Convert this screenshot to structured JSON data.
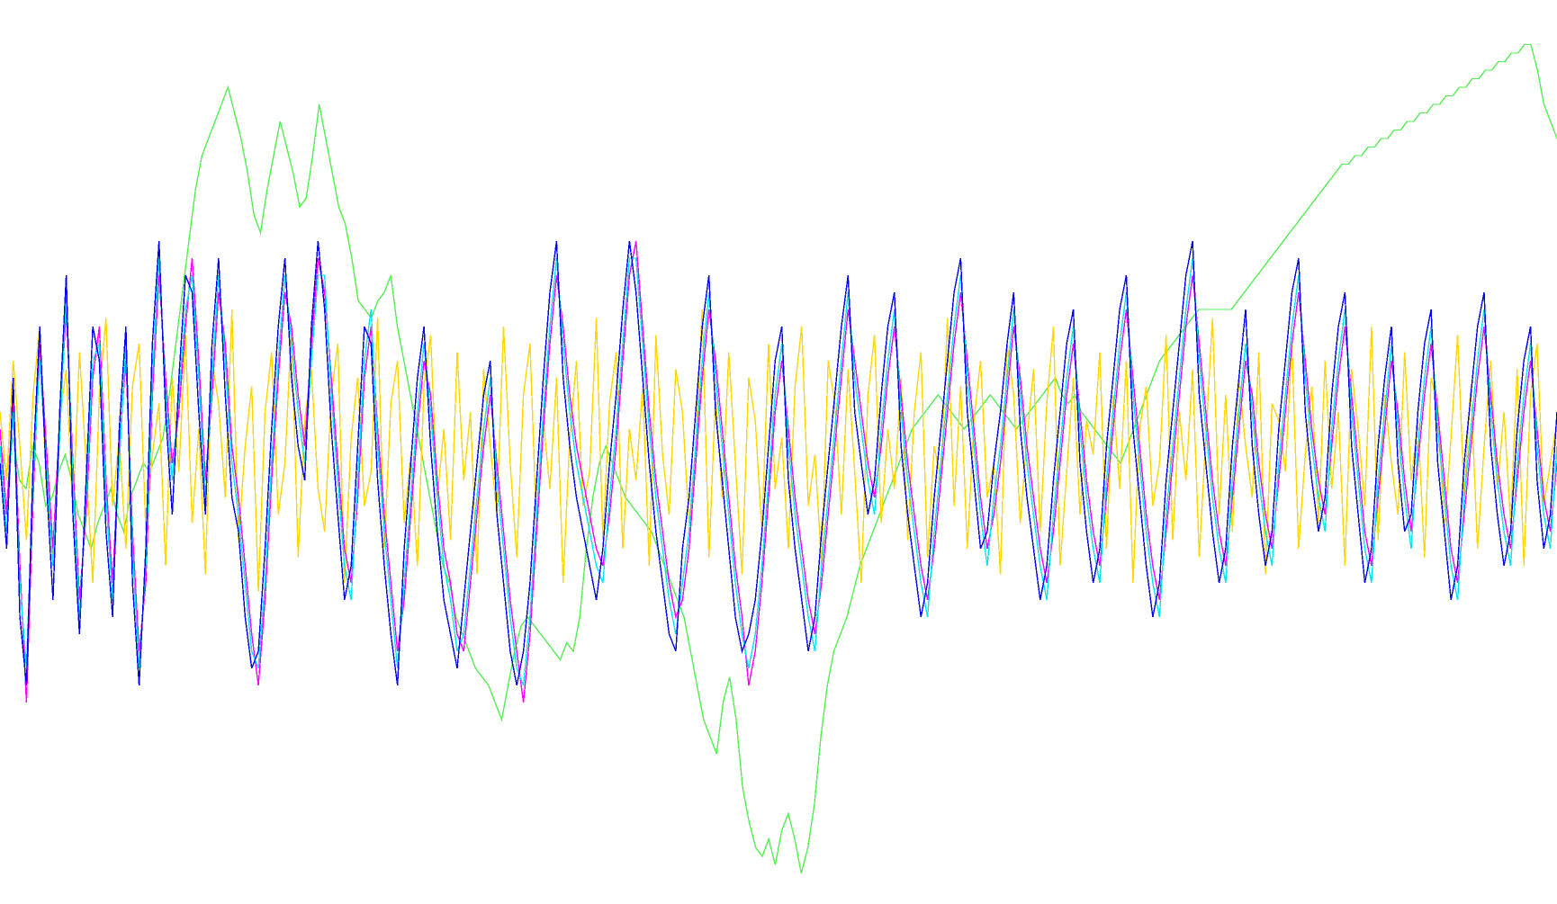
{
  "chart_data": {
    "type": "line",
    "title": "",
    "xlabel": "",
    "ylabel": "",
    "grid": false,
    "legend": "none",
    "x_range": [
      0,
      240
    ],
    "ylim": [
      0,
      100
    ],
    "series": [
      {
        "color": "#55ee55",
        "values": [
          52,
          49,
          53,
          48,
          47,
          52,
          50,
          45,
          46,
          49,
          51,
          48,
          44,
          42,
          40,
          43,
          45,
          47,
          44,
          42,
          46,
          48,
          50,
          49,
          51,
          53,
          58,
          64,
          70,
          76,
          82,
          86,
          88,
          90,
          92,
          94,
          91,
          88,
          84,
          79,
          77,
          82,
          86,
          90,
          87,
          84,
          80,
          81,
          86,
          92,
          88,
          84,
          80,
          78,
          74,
          69,
          68,
          67,
          69,
          70,
          72,
          66,
          62,
          58,
          54,
          50,
          46,
          42,
          38,
          36,
          32,
          30,
          28,
          26,
          25,
          24,
          22,
          20,
          24,
          28,
          31,
          32,
          31,
          30,
          29,
          28,
          27,
          29,
          28,
          32,
          40,
          46,
          50,
          52,
          50,
          48,
          46,
          45,
          44,
          43,
          42,
          40,
          38,
          36,
          34,
          32,
          28,
          24,
          20,
          18,
          16,
          22,
          25,
          20,
          12,
          8,
          5,
          4,
          6,
          3,
          7,
          9,
          6,
          2,
          5,
          10,
          18,
          24,
          28,
          30,
          32,
          35,
          38,
          40,
          42,
          44,
          46,
          48,
          50,
          52,
          54,
          55,
          56,
          57,
          58,
          57,
          56,
          55,
          54,
          55,
          56,
          57,
          58,
          57,
          56,
          55,
          54,
          55,
          56,
          57,
          58,
          59,
          60,
          58,
          57,
          58,
          56,
          55,
          54,
          53,
          52,
          51,
          50,
          52,
          54,
          56,
          58,
          60,
          62,
          63,
          64,
          65,
          66,
          67,
          68,
          68,
          68,
          68,
          68,
          68,
          69,
          70,
          71,
          72,
          73,
          74,
          75,
          76,
          77,
          78,
          79,
          80,
          81,
          82,
          83,
          84,
          85,
          85,
          86,
          86,
          87,
          87,
          88,
          88,
          89,
          89,
          90,
          90,
          91,
          91,
          92,
          92,
          93,
          93,
          94,
          94,
          95,
          95,
          96,
          96,
          97,
          97,
          98,
          98,
          99,
          99,
          96,
          92,
          90,
          88
        ]
      },
      {
        "color": "#ffd700",
        "values": [
          56,
          48,
          62,
          52,
          41,
          58,
          66,
          47,
          39,
          55,
          61,
          44,
          63,
          50,
          36,
          58,
          67,
          45,
          53,
          40,
          59,
          64,
          42,
          51,
          57,
          38,
          60,
          49,
          65,
          43,
          54,
          37,
          62,
          57,
          46,
          68,
          41,
          52,
          59,
          35,
          56,
          63,
          44,
          50,
          66,
          39,
          55,
          61,
          47,
          42,
          58,
          64,
          36,
          53,
          60,
          45,
          49,
          67,
          40,
          57,
          62,
          43,
          51,
          38,
          59,
          65,
          46,
          54,
          41,
          63,
          48,
          56,
          37,
          61,
          52,
          44,
          66,
          50,
          39,
          58,
          64,
          42,
          55,
          47,
          60,
          36,
          53,
          62,
          45,
          49,
          67,
          41,
          57,
          63,
          40,
          54,
          48,
          59,
          38,
          65,
          51,
          44,
          61,
          56,
          43,
          52,
          68,
          39,
          58,
          46,
          63,
          50,
          37,
          60,
          55,
          42,
          64,
          47,
          53,
          40,
          59,
          66,
          45,
          51,
          38,
          62,
          57,
          44,
          61,
          49,
          36,
          58,
          65,
          43,
          54,
          47,
          60,
          41,
          56,
          63,
          39,
          52,
          48,
          67,
          45,
          59,
          40,
          55,
          62,
          46,
          50,
          37,
          64,
          58,
          43,
          53,
          61,
          42,
          57,
          66,
          38,
          49,
          60,
          44,
          55,
          51,
          63,
          40,
          58,
          47,
          62,
          36,
          54,
          59,
          45,
          50,
          65,
          41,
          56,
          48,
          61,
          39,
          53,
          67,
          44,
          58,
          42,
          60,
          52,
          46,
          63,
          37,
          57,
          55,
          49,
          64,
          40,
          51,
          59,
          43,
          62,
          47,
          56,
          38,
          61,
          54,
          45,
          66,
          41,
          58,
          50,
          44,
          63,
          48,
          55,
          39,
          60,
          57,
          42,
          53,
          65,
          46,
          59,
          40,
          52,
          62,
          47,
          56,
          43,
          61,
          38,
          58,
          64,
          45,
          50,
          55
        ]
      },
      {
        "color": "#ff00ff",
        "values": [
          54,
          44,
          58,
          38,
          22,
          46,
          64,
          52,
          40,
          55,
          68,
          50,
          34,
          44,
          60,
          66,
          48,
          36,
          52,
          62,
          42,
          28,
          36,
          58,
          72,
          60,
          50,
          56,
          66,
          74,
          62,
          48,
          58,
          70,
          64,
          52,
          46,
          38,
          30,
          24,
          34,
          48,
          60,
          70,
          66,
          58,
          52,
          64,
          74,
          70,
          60,
          50,
          40,
          36,
          46,
          60,
          66,
          54,
          44,
          36,
          28,
          34,
          44,
          54,
          62,
          58,
          48,
          40,
          36,
          30,
          28,
          36,
          44,
          52,
          58,
          50,
          42,
          34,
          28,
          22,
          30,
          42,
          54,
          64,
          72,
          66,
          58,
          52,
          48,
          44,
          40,
          38,
          44,
          52,
          62,
          72,
          76,
          66,
          56,
          48,
          42,
          36,
          32,
          34,
          40,
          50,
          60,
          68,
          62,
          54,
          46,
          38,
          32,
          24,
          28,
          36,
          46,
          56,
          62,
          54,
          46,
          40,
          34,
          30,
          36,
          44,
          52,
          60,
          68,
          62,
          56,
          50,
          46,
          52,
          60,
          66,
          58,
          50,
          44,
          38,
          34,
          40,
          48,
          56,
          64,
          70,
          62,
          54,
          46,
          40,
          44,
          50,
          58,
          66,
          60,
          52,
          46,
          40,
          36,
          42,
          50,
          58,
          64,
          56,
          48,
          42,
          38,
          46,
          54,
          62,
          68,
          60,
          52,
          44,
          38,
          34,
          42,
          50,
          58,
          66,
          72,
          64,
          56,
          48,
          42,
          38,
          46,
          54,
          62,
          58,
          50,
          44,
          40,
          48,
          56,
          64,
          70,
          62,
          54,
          48,
          44,
          52,
          60,
          66,
          58,
          50,
          42,
          38,
          46,
          54,
          62,
          56,
          48,
          42,
          50,
          58,
          64,
          56,
          48,
          40,
          36,
          44,
          52,
          60,
          66,
          58,
          50,
          44,
          40,
          48,
          56,
          62,
          54,
          46,
          42,
          50
        ]
      },
      {
        "color": "#00e5ee",
        "values": [
          52,
          42,
          56,
          36,
          26,
          48,
          62,
          50,
          38,
          53,
          70,
          48,
          32,
          46,
          62,
          64,
          46,
          34,
          50,
          64,
          40,
          26,
          38,
          60,
          74,
          58,
          48,
          58,
          68,
          72,
          60,
          46,
          60,
          72,
          62,
          50,
          44,
          36,
          28,
          26,
          36,
          50,
          62,
          72,
          64,
          56,
          50,
          62,
          72,
          72,
          58,
          48,
          38,
          34,
          48,
          62,
          68,
          52,
          42,
          34,
          26,
          36,
          46,
          56,
          64,
          56,
          46,
          38,
          34,
          28,
          30,
          38,
          46,
          54,
          60,
          48,
          40,
          32,
          26,
          24,
          32,
          44,
          56,
          66,
          74,
          64,
          56,
          50,
          46,
          42,
          38,
          36,
          46,
          54,
          64,
          74,
          74,
          64,
          54,
          46,
          40,
          34,
          30,
          36,
          42,
          52,
          62,
          70,
          60,
          52,
          44,
          36,
          30,
          26,
          30,
          38,
          48,
          58,
          64,
          52,
          44,
          38,
          32,
          28,
          38,
          46,
          54,
          62,
          70,
          60,
          54,
          48,
          44,
          54,
          62,
          68,
          56,
          48,
          42,
          36,
          32,
          42,
          50,
          58,
          66,
          72,
          60,
          52,
          44,
          38,
          46,
          52,
          60,
          68,
          58,
          50,
          44,
          38,
          34,
          44,
          52,
          60,
          66,
          54,
          46,
          40,
          36,
          48,
          56,
          64,
          70,
          58,
          50,
          42,
          36,
          32,
          44,
          52,
          60,
          68,
          74,
          62,
          54,
          46,
          40,
          36,
          48,
          56,
          64,
          56,
          48,
          42,
          38,
          50,
          58,
          66,
          72,
          60,
          52,
          46,
          42,
          54,
          62,
          68,
          56,
          48,
          40,
          36,
          48,
          56,
          64,
          54,
          46,
          40,
          52,
          60,
          66,
          54,
          46,
          38,
          34,
          46,
          54,
          62,
          68,
          56,
          48,
          42,
          38,
          50,
          58,
          64,
          52,
          44,
          40,
          52
        ]
      },
      {
        "color": "#0000ee",
        "values": [
          50,
          40,
          60,
          32,
          24,
          50,
          66,
          48,
          34,
          56,
          72,
          44,
          30,
          48,
          66,
          62,
          42,
          32,
          54,
          66,
          36,
          24,
          40,
          64,
          76,
          56,
          44,
          60,
          72,
          70,
          56,
          44,
          64,
          74,
          58,
          46,
          42,
          32,
          26,
          28,
          40,
          54,
          66,
          74,
          60,
          52,
          48,
          66,
          76,
          68,
          54,
          44,
          34,
          38,
          52,
          66,
          64,
          48,
          38,
          30,
          24,
          40,
          50,
          60,
          66,
          52,
          42,
          34,
          30,
          26,
          34,
          42,
          50,
          58,
          62,
          44,
          36,
          28,
          24,
          28,
          36,
          48,
          60,
          70,
          76,
          60,
          52,
          46,
          42,
          38,
          34,
          40,
          50,
          58,
          68,
          76,
          70,
          60,
          50,
          42,
          36,
          30,
          28,
          40,
          46,
          56,
          66,
          72,
          56,
          48,
          40,
          32,
          28,
          30,
          34,
          42,
          52,
          62,
          66,
          48,
          40,
          34,
          28,
          32,
          42,
          50,
          58,
          66,
          72,
          56,
          50,
          44,
          48,
          58,
          66,
          70,
          52,
          44,
          38,
          32,
          36,
          46,
          54,
          62,
          70,
          74,
          56,
          48,
          40,
          42,
          50,
          56,
          64,
          70,
          54,
          46,
          40,
          34,
          38,
          48,
          56,
          64,
          68,
          50,
          42,
          36,
          40,
          52,
          60,
          68,
          72,
          54,
          46,
          38,
          32,
          36,
          48,
          56,
          64,
          72,
          76,
          58,
          50,
          42,
          36,
          40,
          52,
          60,
          68,
          52,
          44,
          38,
          42,
          54,
          62,
          70,
          74,
          56,
          48,
          42,
          46,
          58,
          66,
          70,
          52,
          44,
          36,
          40,
          52,
          60,
          66,
          50,
          42,
          44,
          56,
          64,
          68,
          50,
          42,
          34,
          38,
          50,
          58,
          66,
          70,
          52,
          44,
          38,
          42,
          54,
          62,
          66,
          48,
          40,
          44,
          56
        ]
      }
    ]
  }
}
